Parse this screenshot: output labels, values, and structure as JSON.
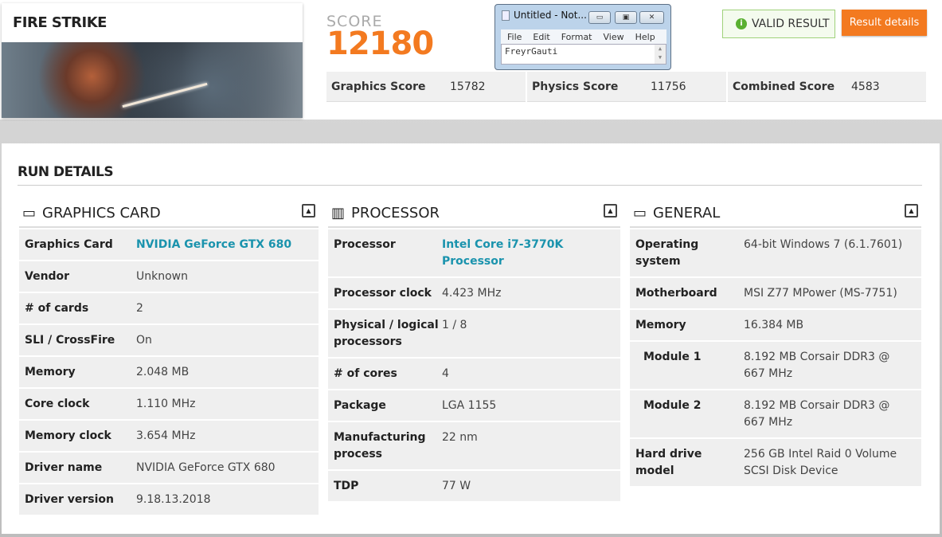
{
  "benchmark": {
    "title": "FIRE STRIKE"
  },
  "score": {
    "label": "SCORE",
    "value": "12180",
    "subscores": [
      {
        "label": "Graphics Score",
        "value": "15782"
      },
      {
        "label": "Physics Score",
        "value": "11756"
      },
      {
        "label": "Combined Score",
        "value": "4583"
      }
    ]
  },
  "valid": {
    "icon": "info-icon",
    "label": "VALID RESULT"
  },
  "result_details": "Result details",
  "notepad": {
    "title": "Untitled - Not...",
    "menu": [
      "File",
      "Edit",
      "Format",
      "View",
      "Help"
    ],
    "text": "FreyrGauti"
  },
  "run_details": {
    "title": "RUN DETAILS",
    "graphics": {
      "title": "GRAPHICS CARD",
      "rows": [
        {
          "k": "Graphics Card",
          "v": "NVIDIA GeForce GTX 680"
        },
        {
          "k": "Vendor",
          "v": "Unknown"
        },
        {
          "k": "# of cards",
          "v": "2"
        },
        {
          "k": "SLI / CrossFire",
          "v": "On"
        },
        {
          "k": "Memory",
          "v": "2.048 MB"
        },
        {
          "k": "Core clock",
          "v": "1.110 MHz"
        },
        {
          "k": "Memory clock",
          "v": "3.654 MHz"
        },
        {
          "k": "Driver name",
          "v": "NVIDIA GeForce GTX 680"
        },
        {
          "k": "Driver version",
          "v": "9.18.13.2018"
        }
      ]
    },
    "processor": {
      "title": "PROCESSOR",
      "rows": [
        {
          "k": "Processor",
          "v": "Intel Core i7-3770K Processor"
        },
        {
          "k": "Processor clock",
          "v": "4.423 MHz"
        },
        {
          "k": "Physical / logical processors",
          "v": "1 / 8"
        },
        {
          "k": "# of cores",
          "v": "4"
        },
        {
          "k": "Package",
          "v": "LGA 1155"
        },
        {
          "k": "Manufacturing process",
          "v": "22 nm"
        },
        {
          "k": "TDP",
          "v": "77 W"
        }
      ]
    },
    "general": {
      "title": "GENERAL",
      "rows": [
        {
          "k": "Operating system",
          "v": "64-bit Windows 7 (6.1.7601)"
        },
        {
          "k": "Motherboard",
          "v": "MSI Z77 MPower (MS-7751)"
        },
        {
          "k": "Memory",
          "v": "16.384 MB"
        },
        {
          "k": "Module 1",
          "v": "8.192 MB Corsair DDR3 @ 667 MHz"
        },
        {
          "k": "Module 2",
          "v": "8.192 MB Corsair DDR3 @ 667 MHz"
        },
        {
          "k": "Hard drive model",
          "v": "256 GB Intel Raid 0 Volume SCSI Disk Device"
        }
      ]
    }
  },
  "colors": {
    "accent": "#f37a20",
    "link": "#1a93ad",
    "valid": "#5ab031"
  }
}
